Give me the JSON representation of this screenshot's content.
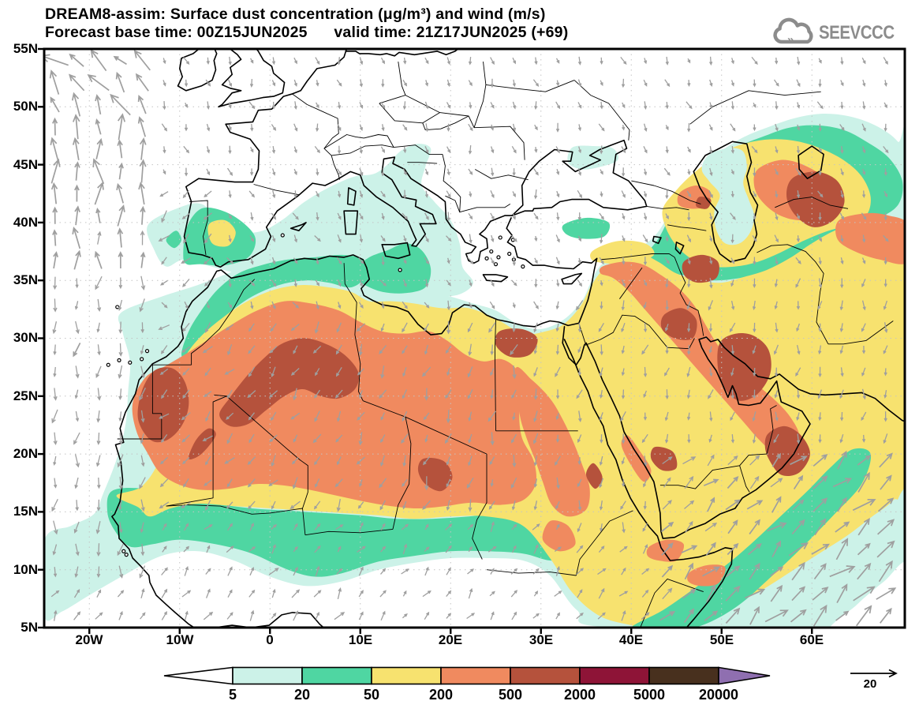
{
  "header": {
    "title_line1": "DREAM8-assim: Surface dust concentration (μg/m³) and wind (m/s)",
    "title_line2": "Forecast base time: 00Z15JUN2025      valid time: 21Z17JUN2025 (+69)"
  },
  "logo": {
    "text": "SEEVCCC"
  },
  "axes": {
    "lat_labels": [
      "55N",
      "50N",
      "45N",
      "40N",
      "35N",
      "30N",
      "25N",
      "20N",
      "15N",
      "10N",
      "5N"
    ],
    "lon_labels": [
      "20W",
      "10W",
      "0",
      "10E",
      "20E",
      "30E",
      "40E",
      "50E",
      "60E"
    ]
  },
  "colorbar": {
    "labels": [
      "5",
      "20",
      "50",
      "200",
      "500",
      "2000",
      "5000",
      "20000"
    ],
    "segment_colors": [
      "#ccf2e8",
      "#4fd6a2",
      "#f7e26f",
      "#f08a5f",
      "#b5523c",
      "#8e1437",
      "#48301e"
    ],
    "underflow_color": "#ffffff",
    "overflow_color": "#8f6fb0"
  },
  "wind_reference": {
    "label": "20"
  },
  "colors": {
    "dust_5": "#ccf2e8",
    "dust_20": "#4fd6a2",
    "dust_50": "#f7e26f",
    "dust_200": "#f08a5f",
    "dust_500": "#b5523c",
    "wind_arrow": "#9f9f9f",
    "coastline": "#000000",
    "graticule": "#c4c4c4",
    "logo_gray": "#8c8c8c"
  }
}
